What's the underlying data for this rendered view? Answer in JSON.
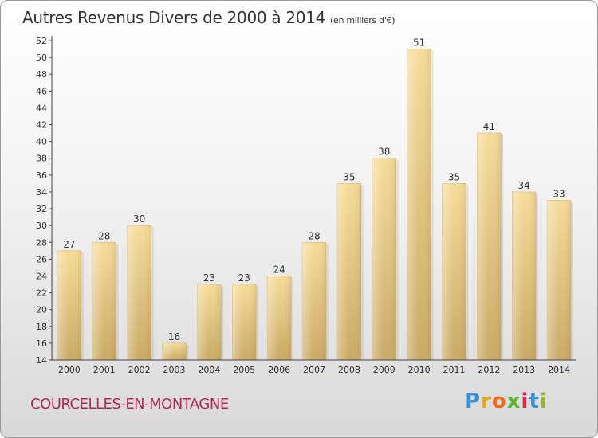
{
  "header": {
    "title": "Autres Revenus Divers de 2000 à 2014",
    "unit": "(en milliers d'€)"
  },
  "footer": {
    "city": "COURCELLES-EN-MONTAGNE",
    "logo": {
      "letters": [
        "P",
        "r",
        "o",
        "x",
        "i",
        "t",
        "i"
      ],
      "colors": [
        "#3a8fd6",
        "#e8a317",
        "#f06a1d",
        "#5bb531",
        "#d8264c",
        "#3a8fd6",
        "#8dbb2a"
      ]
    }
  },
  "chart_data": {
    "type": "bar",
    "categories": [
      "2000",
      "2001",
      "2002",
      "2003",
      "2004",
      "2005",
      "2006",
      "2007",
      "2008",
      "2009",
      "2010",
      "2011",
      "2012",
      "2013",
      "2014"
    ],
    "values": [
      27,
      28,
      30,
      16,
      23,
      23,
      24,
      28,
      35,
      38,
      51,
      35,
      41,
      34,
      33
    ],
    "data_labels": [
      "27",
      "28",
      "30",
      "16",
      "23",
      "23",
      "24",
      "28",
      "35",
      "38",
      "51",
      "35",
      "41",
      "34",
      "33"
    ],
    "yticks": [
      "14",
      "16",
      "18",
      "20",
      "22",
      "24",
      "26",
      "28",
      "30",
      "32",
      "34",
      "36",
      "38",
      "40",
      "42",
      "44",
      "46",
      "48",
      "50",
      "52"
    ],
    "ylim": [
      14,
      52
    ],
    "grid": false,
    "bar_color": "#e6c67e"
  }
}
